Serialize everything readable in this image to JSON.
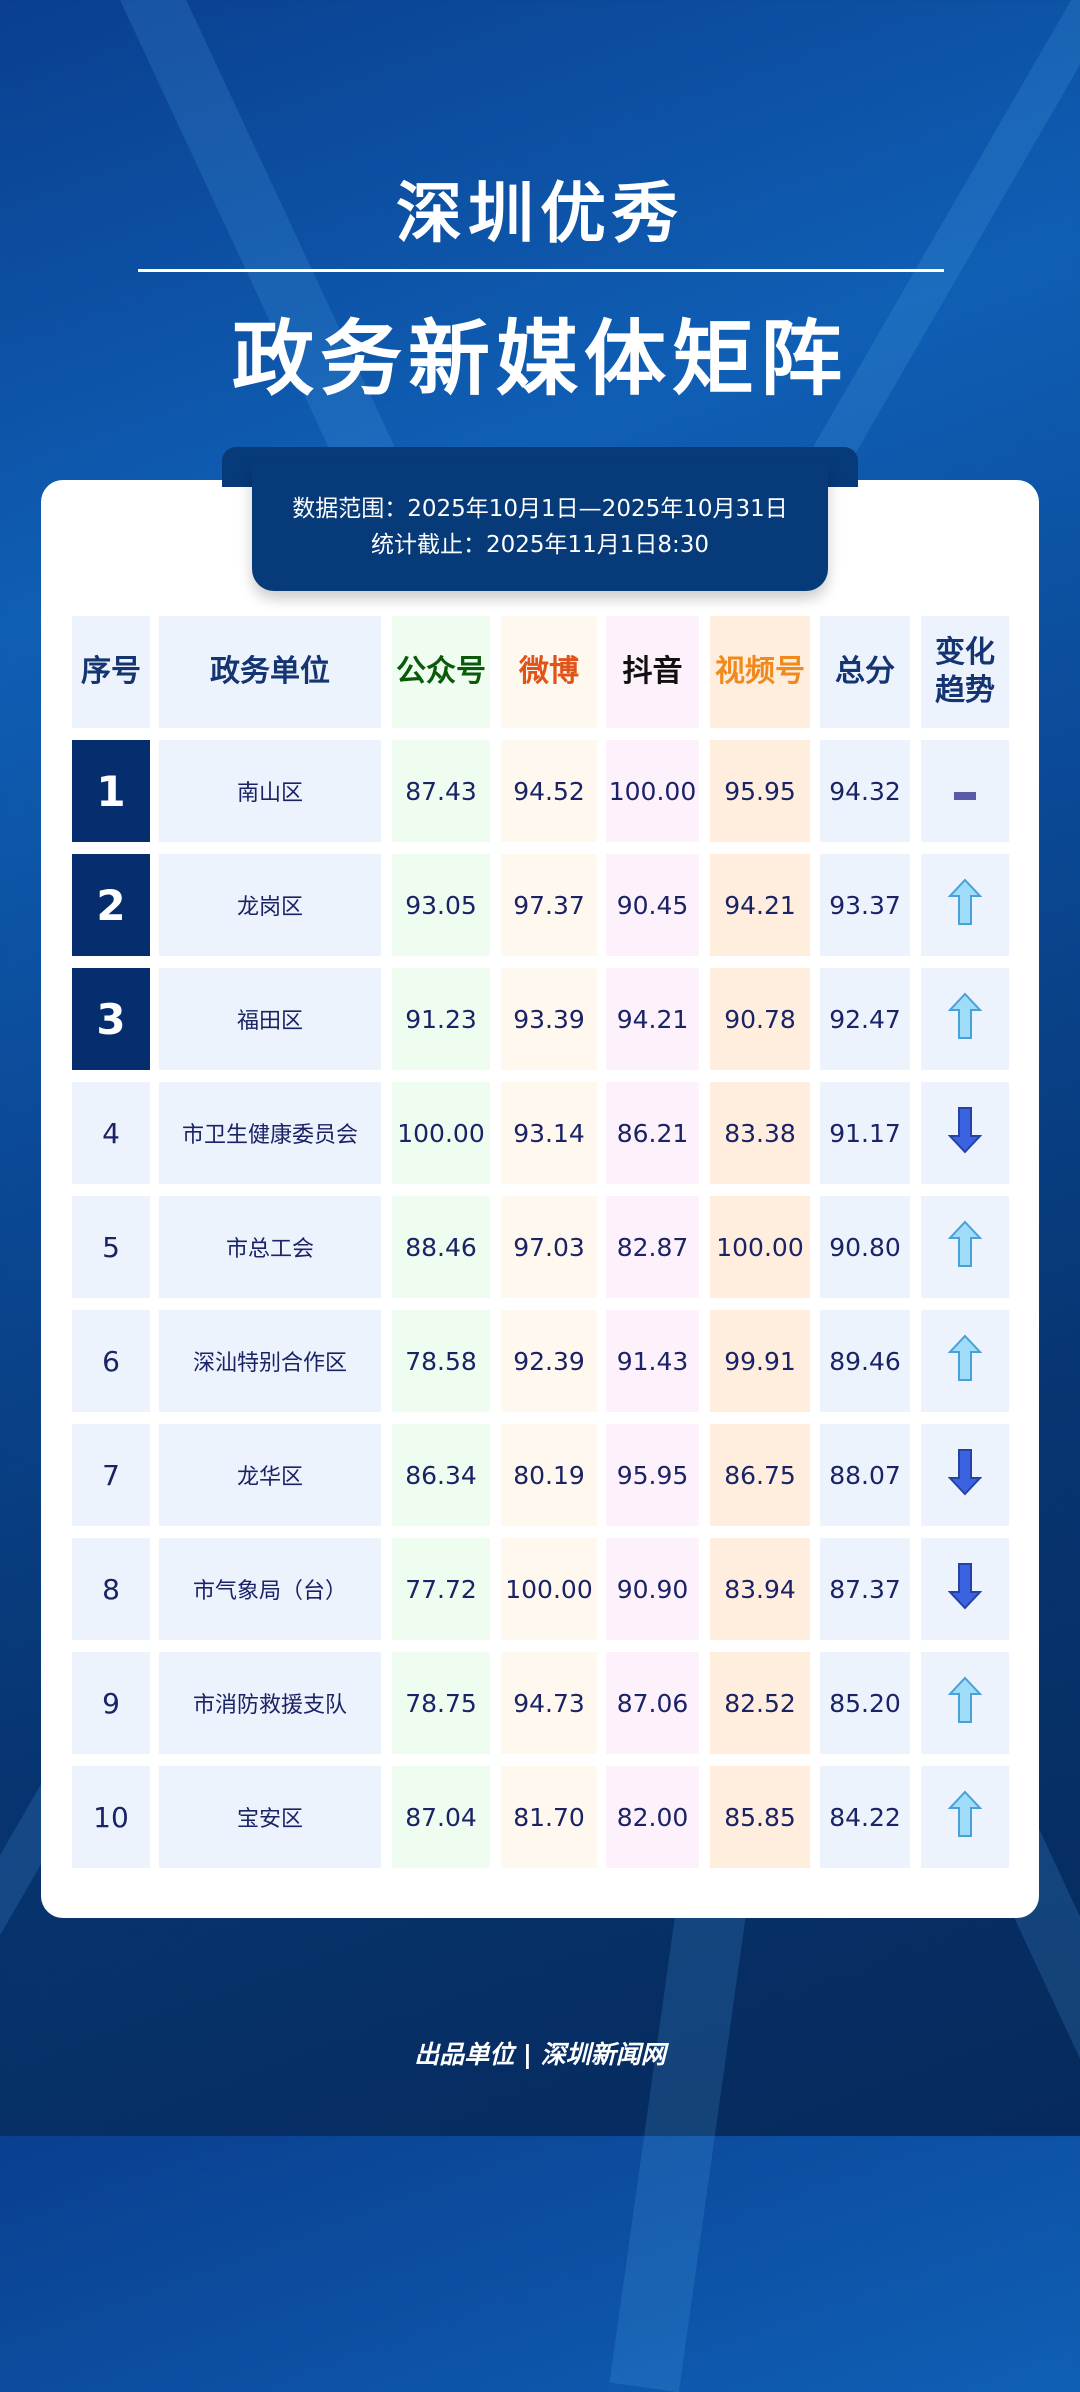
{
  "header": {
    "line1": "深圳优秀",
    "line2": "政务新媒体矩阵"
  },
  "info": {
    "range": "数据范围：2025年10月1日—2025年10月31日",
    "cutoff": "统计截止：2025年11月1日8:30"
  },
  "table": {
    "columns": [
      "序号",
      "政务单位",
      "公众号",
      "微博",
      "抖音",
      "视频号",
      "总分",
      "变化趋势"
    ],
    "column_colors": {
      "公众号": "#0a5a0a",
      "微博": "#e0541a",
      "抖音": "#111111",
      "视频号": "#f08a1c"
    },
    "rows": [
      {
        "rank": "1",
        "unit": "南山区",
        "gzh": "87.43",
        "wb": "94.52",
        "dy": "100.00",
        "sph": "95.95",
        "total": "94.32",
        "trend": "flat"
      },
      {
        "rank": "2",
        "unit": "龙岗区",
        "gzh": "93.05",
        "wb": "97.37",
        "dy": "90.45",
        "sph": "94.21",
        "total": "93.37",
        "trend": "up"
      },
      {
        "rank": "3",
        "unit": "福田区",
        "gzh": "91.23",
        "wb": "93.39",
        "dy": "94.21",
        "sph": "90.78",
        "total": "92.47",
        "trend": "up"
      },
      {
        "rank": "4",
        "unit": "市卫生健康委员会",
        "gzh": "100.00",
        "wb": "93.14",
        "dy": "86.21",
        "sph": "83.38",
        "total": "91.17",
        "trend": "down"
      },
      {
        "rank": "5",
        "unit": "市总工会",
        "gzh": "88.46",
        "wb": "97.03",
        "dy": "82.87",
        "sph": "100.00",
        "total": "90.80",
        "trend": "up"
      },
      {
        "rank": "6",
        "unit": "深汕特别合作区",
        "gzh": "78.58",
        "wb": "92.39",
        "dy": "91.43",
        "sph": "99.91",
        "total": "89.46",
        "trend": "up"
      },
      {
        "rank": "7",
        "unit": "龙华区",
        "gzh": "86.34",
        "wb": "80.19",
        "dy": "95.95",
        "sph": "86.75",
        "total": "88.07",
        "trend": "down"
      },
      {
        "rank": "8",
        "unit": "市气象局（台）",
        "gzh": "77.72",
        "wb": "100.00",
        "dy": "90.90",
        "sph": "83.94",
        "total": "87.37",
        "trend": "down"
      },
      {
        "rank": "9",
        "unit": "市消防救援支队",
        "gzh": "78.75",
        "wb": "94.73",
        "dy": "87.06",
        "sph": "82.52",
        "total": "85.20",
        "trend": "up"
      },
      {
        "rank": "10",
        "unit": "宝安区",
        "gzh": "87.04",
        "wb": "81.70",
        "dy": "82.00",
        "sph": "85.85",
        "total": "84.22",
        "trend": "up"
      }
    ]
  },
  "footer": {
    "text": "出品单位 | 深圳新闻网"
  }
}
